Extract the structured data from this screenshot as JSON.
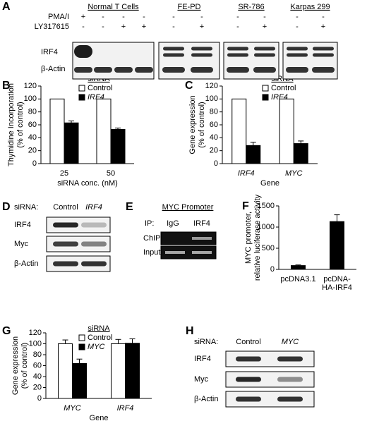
{
  "chart_data": [
    {
      "type": "bar",
      "panel": "B",
      "ylabel": [
        "Thymidine Incorporation",
        "(% of control)"
      ],
      "xlabel": "siRNA conc. (nM)",
      "categories": [
        "25",
        "50"
      ],
      "legend_title": "siRNA",
      "series": [
        {
          "name": "Control",
          "color": "#ffffff",
          "values": [
            100,
            100
          ]
        },
        {
          "name": "IRF4",
          "color": "#000000",
          "values": [
            63,
            53
          ],
          "errors": [
            3,
            2
          ]
        }
      ],
      "ylim": [
        0,
        120
      ],
      "yticks": [
        0,
        20,
        40,
        60,
        80,
        100,
        120
      ]
    },
    {
      "type": "bar",
      "panel": "C",
      "ylabel": [
        "Gene expression",
        "(% of control)"
      ],
      "xlabel": "Gene",
      "categories": [
        "IRF4",
        "MYC"
      ],
      "legend_title": "siRNA",
      "series": [
        {
          "name": "Control",
          "color": "#ffffff",
          "values": [
            100,
            100
          ]
        },
        {
          "name": "IRF4",
          "color": "#000000",
          "values": [
            28,
            31
          ],
          "errors": [
            5,
            4
          ]
        }
      ],
      "ylim": [
        0,
        120
      ],
      "yticks": [
        0,
        20,
        40,
        60,
        80,
        100,
        120
      ]
    },
    {
      "type": "bar",
      "panel": "F",
      "ylabel": [
        "MYC promoter,",
        "relative luciferase activity"
      ],
      "categories": [
        [
          "pcDNA3.1"
        ],
        [
          "pcDNA-",
          "HA-IRF4"
        ]
      ],
      "series": [
        {
          "color": "#000000",
          "values": [
            90,
            1130
          ],
          "errors": [
            15,
            160
          ]
        }
      ],
      "ylim": [
        0,
        1500
      ],
      "yticks": [
        0,
        500,
        1000,
        1500
      ]
    },
    {
      "type": "bar",
      "panel": "G",
      "ylabel": [
        "Gene expression",
        "(% of control)"
      ],
      "xlabel": "Gene",
      "categories": [
        "MYC",
        "IRF4"
      ],
      "legend_title": "siRNA",
      "series": [
        {
          "name": "Control",
          "color": "#ffffff",
          "values": [
            100,
            100
          ],
          "errors": [
            7,
            8
          ]
        },
        {
          "name": "MYC",
          "color": "#000000",
          "values": [
            64,
            101
          ],
          "errors": [
            8,
            8
          ]
        }
      ],
      "ylim": [
        0,
        120
      ],
      "yticks": [
        0,
        20,
        40,
        60,
        80,
        100,
        120
      ]
    }
  ],
  "blots": [
    {
      "panel": "A",
      "groups": [
        "Normal T Cells",
        "FE-PD",
        "SR-786",
        "Karpas 299"
      ],
      "treatments": [
        {
          "name": "PMA/I",
          "signs": [
            "+",
            "-",
            "-",
            "-",
            "-",
            "-",
            "-",
            "-",
            "-",
            "-"
          ]
        },
        {
          "name": "LY317615",
          "signs": [
            "-",
            "-",
            "+",
            "+",
            "-",
            "+",
            "-",
            "+",
            "-",
            "+"
          ]
        }
      ],
      "rows": [
        "IRF4",
        "β-Actin"
      ]
    },
    {
      "panel": "D",
      "header": "siRNA:",
      "lanes": [
        "Control",
        "IRF4"
      ],
      "rows": [
        "IRF4",
        "Myc",
        "β-Actin"
      ]
    },
    {
      "panel": "E",
      "title": "MYC Promoter",
      "header": "IP:",
      "lanes": [
        "IgG",
        "IRF4"
      ],
      "rows": [
        "ChIP",
        "Input"
      ]
    },
    {
      "panel": "H",
      "header": "siRNA:",
      "lanes": [
        "Control",
        "MYC"
      ],
      "rows": [
        "IRF4",
        "Myc",
        "β-Actin"
      ]
    }
  ]
}
